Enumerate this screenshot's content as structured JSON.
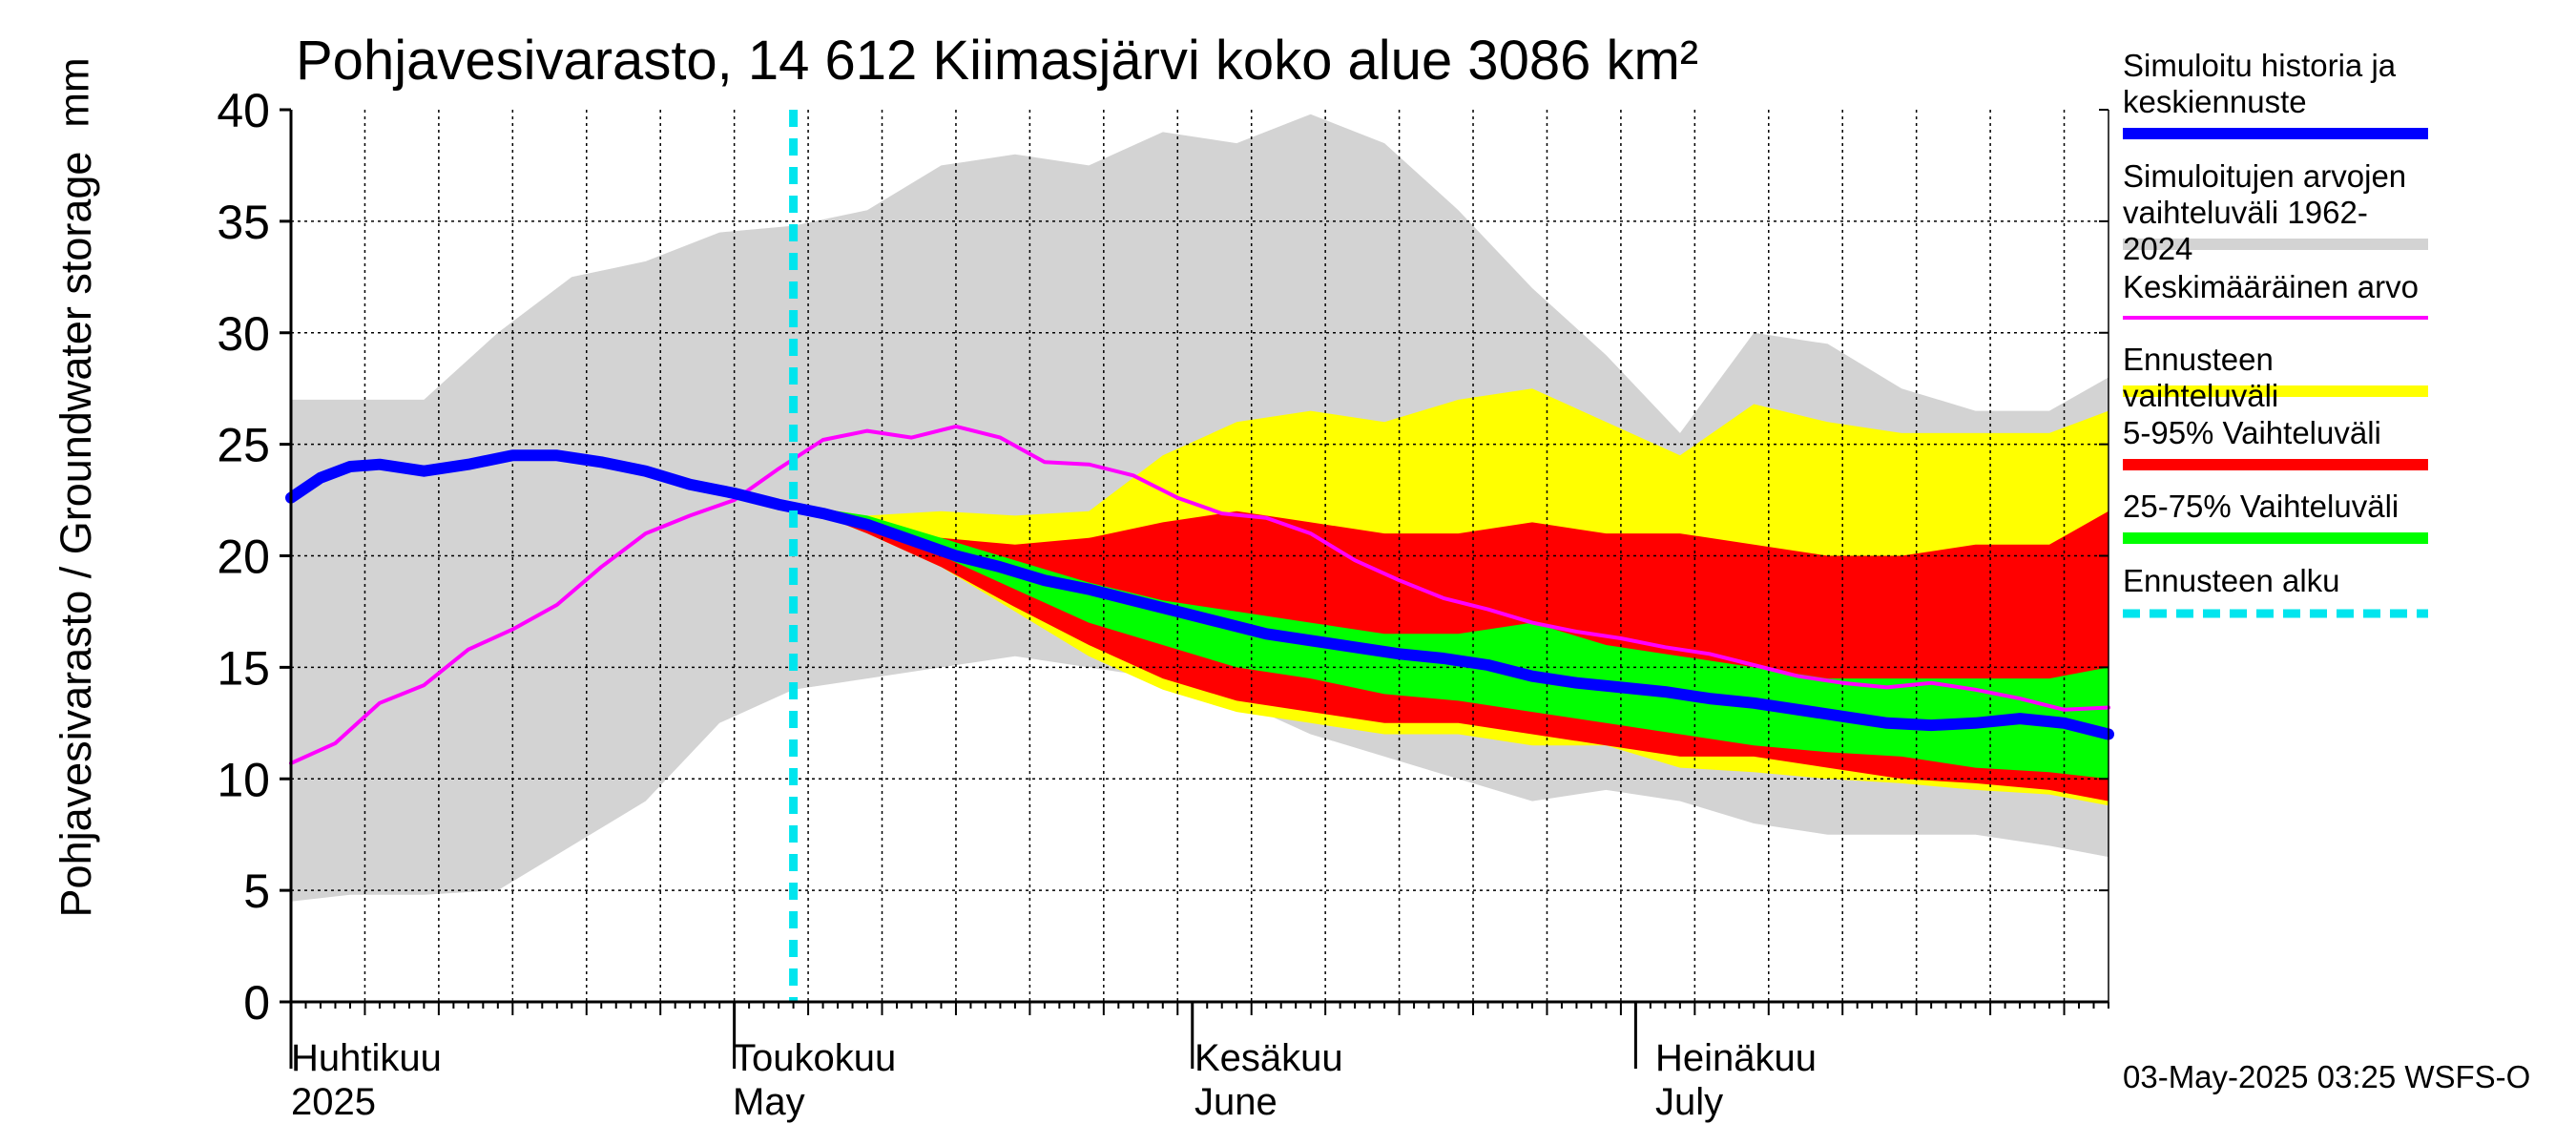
{
  "title": "Pohjavesivarasto, 14 612 Kiimasjärvi koko alue 3086 km²",
  "ylabel": "Pohjavesivarasto / Groundwater storage",
  "unit": "mm",
  "footer": "03-May-2025 03:25 WSFS-O",
  "colors": {
    "history_band": "#d3d3d3",
    "forecast_band": "#ffff00",
    "band_5_95": "#ff0000",
    "band_25_75": "#00ff00",
    "median": "#0000ff",
    "mean": "#ff00ff",
    "forecast_start": "#00e5ee"
  },
  "legend": [
    {
      "label": "Simuloitu historia ja keskiennuste",
      "color": "#0000ff",
      "style": "thick"
    },
    {
      "label": "Simuloitujen arvojen vaihteluväli 1962-2024",
      "color": "#d3d3d3",
      "style": "thick"
    },
    {
      "label": "Keskimääräinen arvo",
      "color": "#ff00ff",
      "style": "thin"
    },
    {
      "label": "Ennusteen vaihteluväli",
      "color": "#ffff00",
      "style": "thick"
    },
    {
      "label": "5-95% Vaihteluväli",
      "color": "#ff0000",
      "style": "thick"
    },
    {
      "label": "25-75% Vaihteluväli",
      "color": "#00ff00",
      "style": "thick"
    },
    {
      "label": "Ennusteen alku",
      "color": "#00e5ee",
      "style": "dashed"
    }
  ],
  "months": [
    {
      "fi": "Huhtikuu",
      "en": "2025",
      "day": 0
    },
    {
      "fi": "Toukokuu",
      "en": "May",
      "day": 30
    },
    {
      "fi": "Kesäkuu",
      "en": "June",
      "day": 61
    },
    {
      "fi": "Heinäkuu",
      "en": "July",
      "day": 91
    }
  ],
  "chart_data": {
    "type": "area",
    "title": "Pohjavesivarasto, 14 612 Kiimasjärvi koko alue 3086 km²",
    "ylabel": "Pohjavesivarasto / Groundwater storage",
    "ylim": [
      0,
      40
    ],
    "yticks": [
      0,
      5,
      10,
      15,
      20,
      25,
      30,
      35,
      40
    ],
    "x_start": "2025-03-30",
    "x_end": "2025-07-31",
    "forecast_start": "2025-05-03",
    "grid": true,
    "legend_position": "right",
    "series": [
      {
        "name": "Simuloitu historia ja keskiennuste",
        "kind": "line",
        "x": [
          "2025-03-30",
          "2025-04-01",
          "2025-04-03",
          "2025-04-05",
          "2025-04-08",
          "2025-04-11",
          "2025-04-14",
          "2025-04-17",
          "2025-04-20",
          "2025-04-23",
          "2025-04-26",
          "2025-04-29",
          "2025-05-02",
          "2025-05-05",
          "2025-05-08",
          "2025-05-11",
          "2025-05-14",
          "2025-05-17",
          "2025-05-20",
          "2025-05-23",
          "2025-05-26",
          "2025-05-29",
          "2025-06-01",
          "2025-06-04",
          "2025-06-07",
          "2025-06-10",
          "2025-06-13",
          "2025-06-16",
          "2025-06-19",
          "2025-06-22",
          "2025-06-25",
          "2025-06-28",
          "2025-07-01",
          "2025-07-04",
          "2025-07-07",
          "2025-07-10",
          "2025-07-13",
          "2025-07-16",
          "2025-07-19",
          "2025-07-22",
          "2025-07-25",
          "2025-07-28",
          "2025-07-31"
        ],
        "values": [
          22.6,
          23.5,
          24.0,
          24.1,
          23.8,
          24.1,
          24.5,
          24.5,
          24.2,
          23.8,
          23.2,
          22.8,
          22.3,
          21.9,
          21.4,
          20.7,
          20.0,
          19.5,
          18.9,
          18.5,
          18.0,
          17.5,
          17.0,
          16.5,
          16.2,
          15.9,
          15.6,
          15.4,
          15.1,
          14.6,
          14.3,
          14.1,
          13.9,
          13.6,
          13.4,
          13.1,
          12.8,
          12.5,
          12.4,
          12.5,
          12.7,
          12.5,
          12.0
        ]
      },
      {
        "name": "Keskimääräinen arvo",
        "kind": "line",
        "x": [
          "2025-03-30",
          "2025-04-02",
          "2025-04-05",
          "2025-04-08",
          "2025-04-11",
          "2025-04-14",
          "2025-04-17",
          "2025-04-20",
          "2025-04-23",
          "2025-04-26",
          "2025-04-29",
          "2025-05-02",
          "2025-05-05",
          "2025-05-08",
          "2025-05-11",
          "2025-05-14",
          "2025-05-17",
          "2025-05-20",
          "2025-05-23",
          "2025-05-26",
          "2025-05-29",
          "2025-06-01",
          "2025-06-04",
          "2025-06-07",
          "2025-06-10",
          "2025-06-13",
          "2025-06-16",
          "2025-06-19",
          "2025-06-22",
          "2025-06-25",
          "2025-06-28",
          "2025-07-01",
          "2025-07-04",
          "2025-07-07",
          "2025-07-10",
          "2025-07-13",
          "2025-07-16",
          "2025-07-19",
          "2025-07-22",
          "2025-07-25",
          "2025-07-28",
          "2025-07-31"
        ],
        "values": [
          10.7,
          11.6,
          13.4,
          14.2,
          15.8,
          16.7,
          17.8,
          19.5,
          21.0,
          21.8,
          22.5,
          23.9,
          25.2,
          25.6,
          25.3,
          25.8,
          25.3,
          24.2,
          24.1,
          23.6,
          22.6,
          21.9,
          21.7,
          21.0,
          19.8,
          18.9,
          18.1,
          17.6,
          17.0,
          16.6,
          16.3,
          15.9,
          15.6,
          15.1,
          14.6,
          14.3,
          14.1,
          14.3,
          14.0,
          13.6,
          13.1,
          13.2
        ]
      },
      {
        "name": "Simuloitujen arvojen vaihteluväli 1962-2024",
        "kind": "band",
        "x": [
          "2025-03-30",
          "2025-04-03",
          "2025-04-08",
          "2025-04-13",
          "2025-04-18",
          "2025-04-23",
          "2025-04-28",
          "2025-05-03",
          "2025-05-08",
          "2025-05-13",
          "2025-05-18",
          "2025-05-23",
          "2025-05-28",
          "2025-06-02",
          "2025-06-07",
          "2025-06-12",
          "2025-06-17",
          "2025-06-22",
          "2025-06-27",
          "2025-07-02",
          "2025-07-07",
          "2025-07-12",
          "2025-07-17",
          "2025-07-22",
          "2025-07-27",
          "2025-07-31"
        ],
        "upper": [
          27.0,
          27.0,
          27.0,
          30.0,
          32.5,
          33.2,
          34.5,
          34.8,
          35.5,
          37.5,
          38.0,
          37.5,
          39.0,
          38.5,
          39.8,
          38.5,
          35.5,
          32.0,
          29.0,
          25.5,
          30.0,
          29.5,
          27.5,
          26.5,
          26.5,
          28.0
        ],
        "lower": [
          4.5,
          4.8,
          4.8,
          5.0,
          7.0,
          9.0,
          12.5,
          14.0,
          14.5,
          15.0,
          15.5,
          15.0,
          14.5,
          13.5,
          12.0,
          11.0,
          10.0,
          9.0,
          9.5,
          9.0,
          8.0,
          7.5,
          7.5,
          7.5,
          7.0,
          6.5
        ]
      },
      {
        "name": "Ennusteen vaihteluväli",
        "kind": "band",
        "x": [
          "2025-05-03",
          "2025-05-08",
          "2025-05-13",
          "2025-05-18",
          "2025-05-23",
          "2025-05-28",
          "2025-06-02",
          "2025-06-07",
          "2025-06-12",
          "2025-06-17",
          "2025-06-22",
          "2025-06-27",
          "2025-07-02",
          "2025-07-07",
          "2025-07-12",
          "2025-07-17",
          "2025-07-22",
          "2025-07-27",
          "2025-07-31"
        ],
        "upper": [
          22.3,
          21.8,
          22.0,
          21.8,
          22.0,
          24.5,
          26.0,
          26.5,
          26.0,
          27.0,
          27.5,
          26.0,
          24.5,
          26.8,
          26.0,
          25.5,
          25.5,
          25.5,
          26.5
        ],
        "lower": [
          22.3,
          21.0,
          19.5,
          17.5,
          15.5,
          14.0,
          13.0,
          12.5,
          12.0,
          12.0,
          11.5,
          11.5,
          10.5,
          10.3,
          10.0,
          9.8,
          9.5,
          9.3,
          8.8
        ]
      },
      {
        "name": "5-95% Vaihteluväli",
        "kind": "band",
        "x": [
          "2025-05-03",
          "2025-05-08",
          "2025-05-13",
          "2025-05-18",
          "2025-05-23",
          "2025-05-28",
          "2025-06-02",
          "2025-06-07",
          "2025-06-12",
          "2025-06-17",
          "2025-06-22",
          "2025-06-27",
          "2025-07-02",
          "2025-07-07",
          "2025-07-12",
          "2025-07-17",
          "2025-07-22",
          "2025-07-27",
          "2025-07-31"
        ],
        "upper": [
          22.3,
          21.5,
          20.8,
          20.5,
          20.8,
          21.5,
          22.0,
          21.5,
          21.0,
          21.0,
          21.5,
          21.0,
          21.0,
          20.5,
          20.0,
          20.0,
          20.5,
          20.5,
          22.0
        ],
        "lower": [
          22.3,
          21.0,
          19.5,
          17.7,
          16.0,
          14.5,
          13.5,
          13.0,
          12.5,
          12.5,
          12.0,
          11.5,
          11.0,
          11.0,
          10.5,
          10.0,
          9.8,
          9.5,
          9.0
        ]
      },
      {
        "name": "25-75% Vaihteluväli",
        "kind": "band",
        "x": [
          "2025-05-03",
          "2025-05-08",
          "2025-05-13",
          "2025-05-18",
          "2025-05-23",
          "2025-05-28",
          "2025-06-02",
          "2025-06-07",
          "2025-06-12",
          "2025-06-17",
          "2025-06-22",
          "2025-06-27",
          "2025-07-02",
          "2025-07-07",
          "2025-07-12",
          "2025-07-17",
          "2025-07-22",
          "2025-07-27",
          "2025-07-31"
        ],
        "upper": [
          22.3,
          21.8,
          20.8,
          19.8,
          18.8,
          18.0,
          17.5,
          17.0,
          16.5,
          16.5,
          17.0,
          16.0,
          15.5,
          15.0,
          14.5,
          14.5,
          14.5,
          14.5,
          15.0
        ],
        "lower": [
          22.3,
          21.5,
          20.0,
          18.5,
          17.0,
          16.0,
          15.0,
          14.5,
          13.8,
          13.5,
          13.0,
          12.5,
          12.0,
          11.5,
          11.2,
          11.0,
          10.5,
          10.3,
          10.0
        ]
      }
    ]
  }
}
